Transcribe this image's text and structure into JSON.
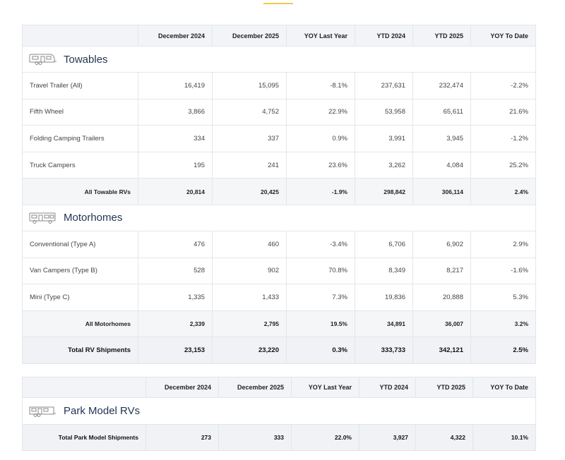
{
  "columns": [
    "December 2024",
    "December 2025",
    "YOY Last Year",
    "YTD 2024",
    "YTD 2025",
    "YOY To Date"
  ],
  "towables": {
    "title": "Towables",
    "icon": "travel-trailer-icon",
    "rows": [
      {
        "label": "Travel Trailer (All)",
        "values": [
          "16,419",
          "15,095",
          "-8.1%",
          "237,631",
          "232,474",
          "-2.2%"
        ]
      },
      {
        "label": "Fifth Wheel",
        "values": [
          "3,866",
          "4,752",
          "22.9%",
          "53,958",
          "65,611",
          "21.6%"
        ]
      },
      {
        "label": "Folding Camping Trailers",
        "values": [
          "334",
          "337",
          "0.9%",
          "3,991",
          "3,945",
          "-1.2%"
        ]
      },
      {
        "label": "Truck Campers",
        "values": [
          "195",
          "241",
          "23.6%",
          "3,262",
          "4,084",
          "25.2%"
        ]
      }
    ],
    "subtotal": {
      "label": "All Towable RVs",
      "values": [
        "20,814",
        "20,425",
        "-1.9%",
        "298,842",
        "306,114",
        "2.4%"
      ]
    }
  },
  "motorhomes": {
    "title": "Motorhomes",
    "icon": "motorhome-icon",
    "rows": [
      {
        "label": "Conventional (Type A)",
        "values": [
          "476",
          "460",
          "-3.4%",
          "6,706",
          "6,902",
          "2.9%"
        ]
      },
      {
        "label": "Van Campers (Type B)",
        "values": [
          "528",
          "902",
          "70.8%",
          "8,349",
          "8,217",
          "-1.6%"
        ]
      },
      {
        "label": "Mini (Type C)",
        "values": [
          "1,335",
          "1,433",
          "7.3%",
          "19,836",
          "20,888",
          "5.3%"
        ]
      }
    ],
    "subtotal": {
      "label": "All Motorhomes",
      "values": [
        "2,339",
        "2,795",
        "19.5%",
        "34,891",
        "36,007",
        "3.2%"
      ]
    }
  },
  "total": {
    "label": "Total RV Shipments",
    "values": [
      "23,153",
      "23,220",
      "0.3%",
      "333,733",
      "342,121",
      "2.5%"
    ]
  },
  "park_model": {
    "title": "Park Model RVs",
    "icon": "park-model-icon",
    "total": {
      "label": "Total Park Model Shipments",
      "values": [
        "273",
        "333",
        "22.0%",
        "3,927",
        "4,322",
        "10.1%"
      ]
    }
  },
  "colors": {
    "accent": "#f2c94c",
    "title": "#1f3550",
    "header_bg": "#f2f4f7"
  }
}
